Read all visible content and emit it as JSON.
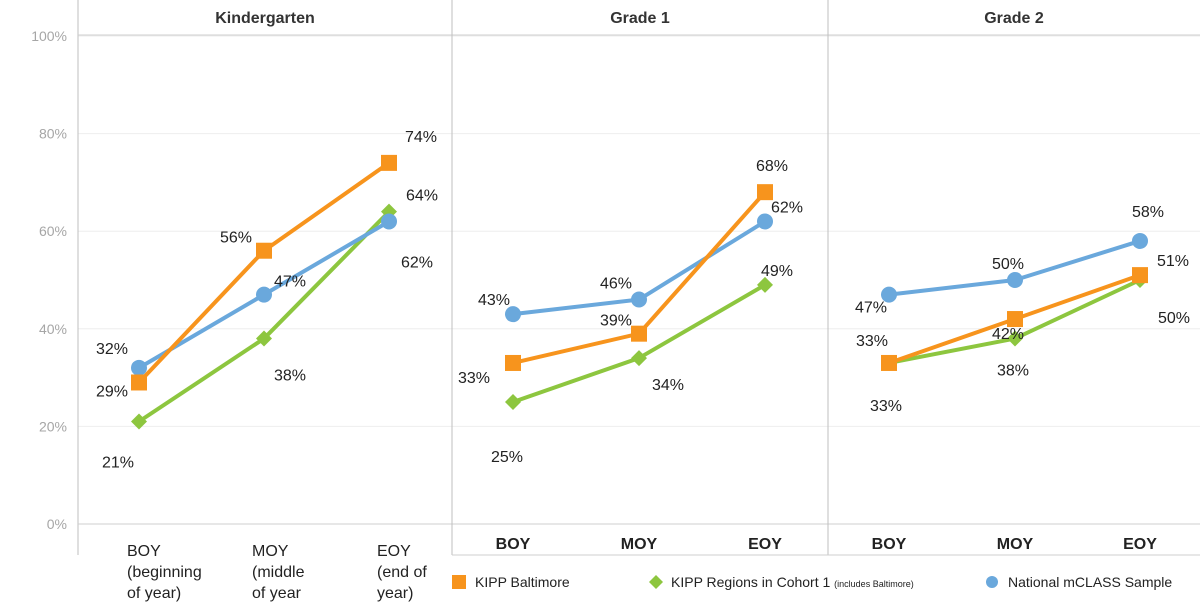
{
  "chart_data": {
    "type": "line",
    "ylim": [
      0,
      100
    ],
    "y_ticks": [
      0,
      20,
      40,
      60,
      80,
      100
    ],
    "y_tick_labels": [
      "0%",
      "20%",
      "40%",
      "60%",
      "80%",
      "100%"
    ],
    "grid": true,
    "legend_position": "bottom-right",
    "colors": {
      "KIPP Baltimore": "#f7941d",
      "KIPP Regions in Cohort 1": "#8dc63f",
      "National mCLASS Sample": "#6aa8dc"
    },
    "legend": [
      {
        "name": "KIPP Baltimore",
        "note": "",
        "marker": "square"
      },
      {
        "name": "KIPP Regions in Cohort 1",
        "note": "(includes Baltimore)",
        "marker": "diamond"
      },
      {
        "name": "National mCLASS Sample",
        "note": "",
        "marker": "circle"
      }
    ],
    "panels": [
      {
        "title": "Kindergarten",
        "categories": [
          [
            "BOY",
            "(beginning",
            "of year)"
          ],
          [
            "MOY",
            "(middle",
            "of year"
          ],
          [
            "EOY",
            "(end of",
            "year)"
          ]
        ],
        "series": [
          {
            "name": "KIPP Baltimore",
            "values": [
              29,
              56,
              74
            ],
            "labels": [
              "29%",
              "56%",
              "74%"
            ]
          },
          {
            "name": "KIPP Regions in Cohort 1",
            "values": [
              21,
              38,
              64
            ],
            "labels": [
              "21%",
              "38%",
              "64%"
            ]
          },
          {
            "name": "National mCLASS Sample",
            "values": [
              32,
              47,
              62
            ],
            "labels": [
              "32%",
              "47%",
              "62%"
            ]
          }
        ]
      },
      {
        "title": "Grade 1",
        "categories": [
          [
            "BOY"
          ],
          [
            "MOY"
          ],
          [
            "EOY"
          ]
        ],
        "series": [
          {
            "name": "KIPP Baltimore",
            "values": [
              33,
              39,
              68
            ],
            "labels": [
              "33%",
              "39%",
              "68%"
            ]
          },
          {
            "name": "KIPP Regions in Cohort 1",
            "values": [
              25,
              34,
              49
            ],
            "labels": [
              "25%",
              "34%",
              "49%"
            ]
          },
          {
            "name": "National mCLASS Sample",
            "values": [
              43,
              46,
              62
            ],
            "labels": [
              "43%",
              "46%",
              "62%"
            ]
          }
        ]
      },
      {
        "title": "Grade 2",
        "categories": [
          [
            "BOY"
          ],
          [
            "MOY"
          ],
          [
            "EOY"
          ]
        ],
        "series": [
          {
            "name": "KIPP Baltimore",
            "values": [
              33,
              42,
              51
            ],
            "labels": [
              "33%",
              "42%",
              "51%"
            ]
          },
          {
            "name": "KIPP Regions in Cohort 1",
            "values": [
              33,
              38,
              50
            ],
            "labels": [
              "33%",
              "38%",
              "50%"
            ]
          },
          {
            "name": "National mCLASS Sample",
            "values": [
              47,
              50,
              58
            ],
            "labels": [
              "47%",
              "50%",
              "58%"
            ]
          }
        ]
      }
    ]
  }
}
